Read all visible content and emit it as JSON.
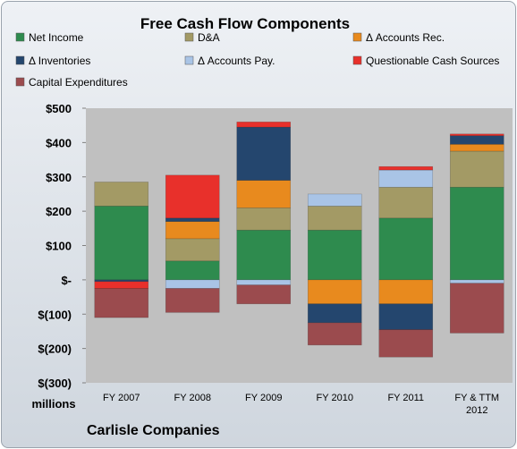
{
  "chart_data": {
    "type": "bar",
    "stacked": true,
    "title": "Free Cash Flow Components",
    "categories": [
      "FY 2007",
      "FY 2008",
      "FY 2009",
      "FY 2010",
      "FY 2011",
      "FY & TTM 2012"
    ],
    "series": [
      {
        "name": "Net Income",
        "color": "#2e8b4e",
        "values": [
          215,
          55,
          145,
          145,
          180,
          270
        ]
      },
      {
        "name": "D&A",
        "color": "#a39a65",
        "values": [
          70,
          65,
          65,
          70,
          90,
          105
        ]
      },
      {
        "name": "Δ Accounts Rec.",
        "color": "#e88a1e",
        "values": [
          0,
          50,
          80,
          -70,
          -70,
          20
        ]
      },
      {
        "name": "Δ Inventories",
        "color": "#24466e",
        "values": [
          -5,
          10,
          155,
          -55,
          -75,
          25
        ]
      },
      {
        "name": "Δ Accounts Pay.",
        "color": "#a9c4e6",
        "values": [
          0,
          -25,
          -15,
          35,
          50,
          -10
        ]
      },
      {
        "name": "Questionable Cash Sources",
        "color": "#e8302b",
        "values": [
          -20,
          125,
          15,
          0,
          10,
          5
        ]
      },
      {
        "name": "Capital Expenditures",
        "color": "#9b4b4e",
        "values": [
          -85,
          -70,
          -55,
          -65,
          -80,
          -145
        ]
      }
    ],
    "y_ticks": [
      "$500",
      "$400",
      "$300",
      "$200",
      "$100",
      "$-",
      "$(100)",
      "$(200)",
      "$(300)"
    ],
    "ylim": [
      -300,
      500
    ],
    "ylabel": "millions",
    "grid": false,
    "legend_position": "top",
    "plot_background": "#c0c0c0"
  },
  "footer": {
    "company": "Carlisle Companies"
  }
}
